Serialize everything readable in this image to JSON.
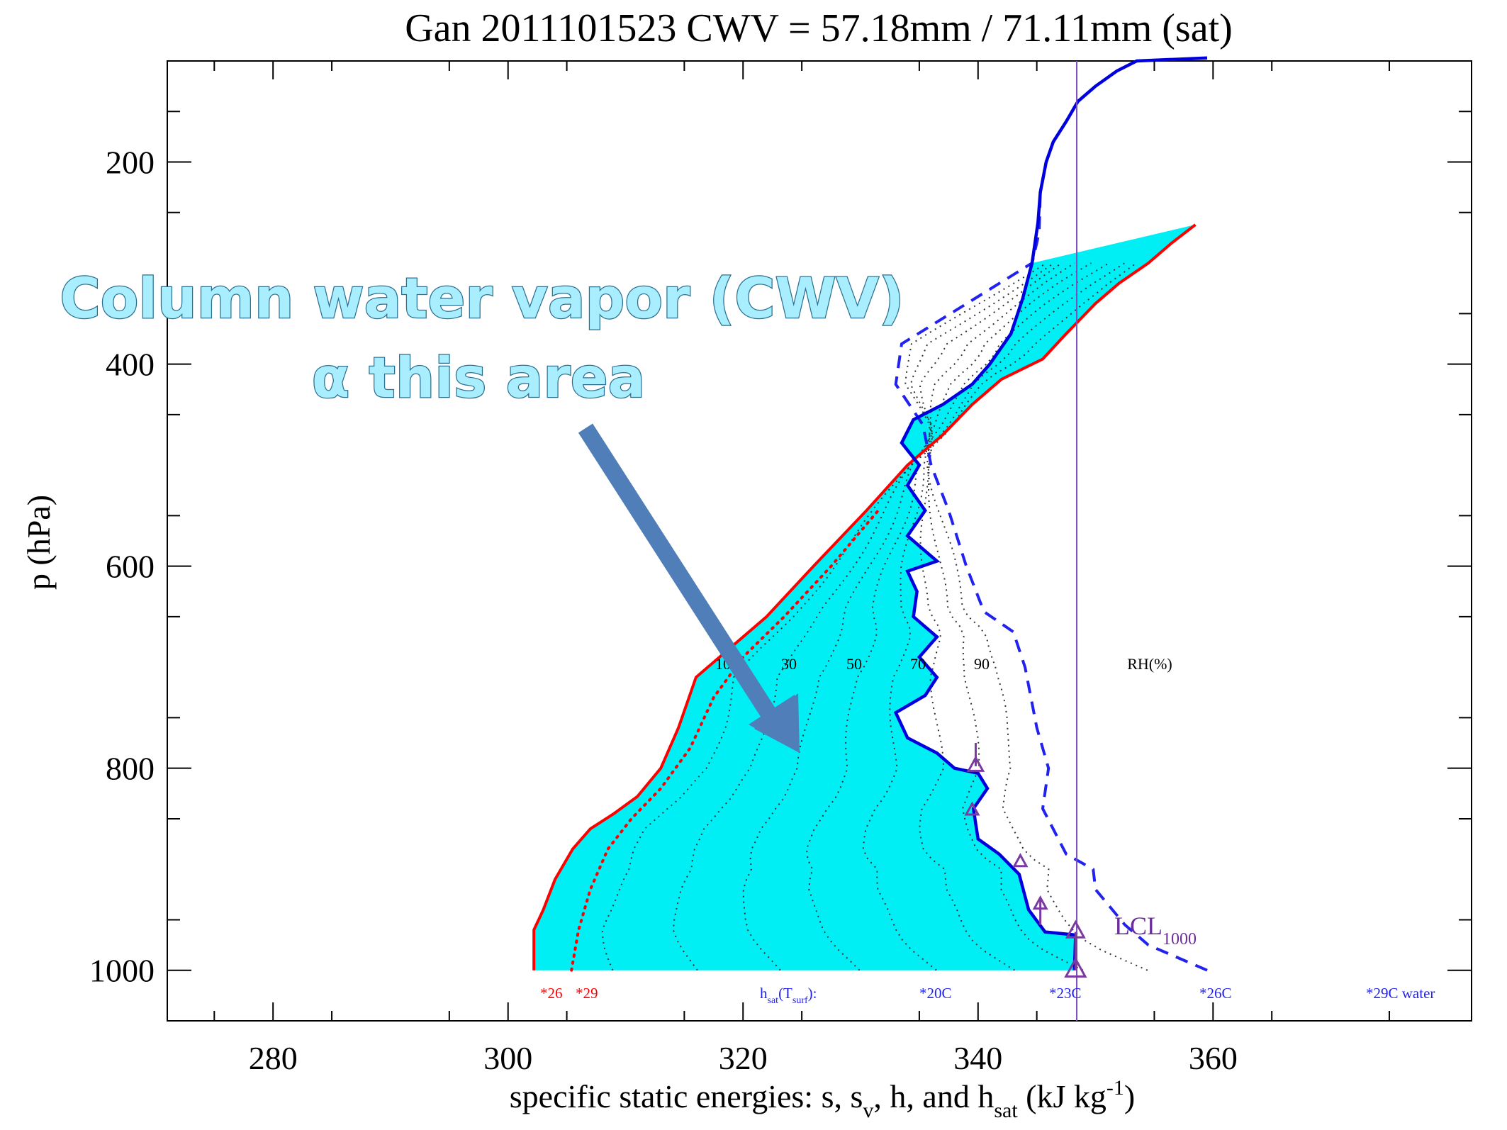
{
  "chart_data": {
    "type": "line",
    "title": "Gan 2011101523  CWV = 57.18mm / 71.11mm (sat)",
    "xlabel": "specific static energies: s, s",
    "xlabel_parts": {
      "sub_v": "v",
      "mid": ", h, and h",
      "sub_sat": "sat",
      "units": " (kJ  kg",
      "sup": "-1",
      "close": ")"
    },
    "ylabel": "p (hPa)",
    "xlim": [
      271,
      382
    ],
    "ylim": [
      1050,
      100
    ],
    "x_ticks": [
      280,
      300,
      320,
      340,
      360
    ],
    "y_ticks": [
      200,
      400,
      600,
      800,
      1000
    ],
    "x_tick_labels": [
      "280",
      "300",
      "320",
      "340",
      "360"
    ],
    "y_tick_labels": [
      "200",
      "400",
      "600",
      "800",
      "1000"
    ],
    "grid": false,
    "colors": {
      "s_line": "#ff0000",
      "s_v_line": "#ff0000",
      "h_line": "#0000dd",
      "h_sat_line": "#2222ee",
      "fill": "#00eff5",
      "rh_contours": "#333333",
      "lcl_vertical": "#7a4fc0",
      "markers": "#7a3aa0",
      "arrow": "#4f7eb8",
      "callout_text": "#a8eeff"
    },
    "series": [
      {
        "name": "s",
        "style": "solid",
        "points": [
          [
            302.2,
            1000
          ],
          [
            302.2,
            960
          ],
          [
            303,
            940
          ],
          [
            304,
            910
          ],
          [
            305.5,
            880
          ],
          [
            307,
            860
          ],
          [
            309,
            845
          ],
          [
            311,
            828
          ],
          [
            313,
            800
          ],
          [
            314.5,
            760
          ],
          [
            316,
            710
          ],
          [
            318.5,
            685
          ],
          [
            322,
            650
          ],
          [
            326,
            600
          ],
          [
            330.5,
            545
          ],
          [
            334,
            500
          ],
          [
            337,
            470
          ],
          [
            339.5,
            440
          ],
          [
            342,
            415
          ],
          [
            345.5,
            395
          ],
          [
            347.5,
            370
          ],
          [
            350,
            340
          ],
          [
            352,
            320
          ],
          [
            354.5,
            300
          ],
          [
            356.5,
            280
          ],
          [
            358.5,
            262
          ]
        ]
      },
      {
        "name": "s_v",
        "style": "dotted",
        "points": [
          [
            305.4,
            1000
          ],
          [
            306,
            960
          ],
          [
            307,
            920
          ],
          [
            308.5,
            880
          ],
          [
            310.5,
            850
          ],
          [
            313,
            820
          ],
          [
            315.5,
            780
          ],
          [
            317.5,
            730
          ],
          [
            320,
            690
          ],
          [
            323.5,
            650
          ],
          [
            327.5,
            600
          ],
          [
            331.5,
            545
          ]
        ]
      },
      {
        "name": "h",
        "style": "solid",
        "points": [
          [
            348.2,
            1000
          ],
          [
            348.3,
            965
          ],
          [
            345.7,
            962
          ],
          [
            344.3,
            940
          ],
          [
            343.5,
            905
          ],
          [
            341.8,
            885
          ],
          [
            340,
            870
          ],
          [
            339.6,
            840
          ],
          [
            340.8,
            820
          ],
          [
            340,
            805
          ],
          [
            338,
            800
          ],
          [
            336.5,
            785
          ],
          [
            334,
            770
          ],
          [
            333,
            745
          ],
          [
            335.5,
            728
          ],
          [
            336.5,
            710
          ],
          [
            335,
            690
          ],
          [
            336.5,
            670
          ],
          [
            334.5,
            650
          ],
          [
            334.8,
            625
          ],
          [
            334,
            605
          ],
          [
            336.5,
            595
          ],
          [
            334,
            570
          ],
          [
            335.5,
            545
          ],
          [
            334,
            520
          ],
          [
            335,
            500
          ],
          [
            333.5,
            478
          ],
          [
            334.5,
            455
          ],
          [
            337,
            440
          ],
          [
            339.5,
            420
          ],
          [
            341,
            400
          ],
          [
            342.8,
            370
          ],
          [
            343.8,
            335
          ],
          [
            344.6,
            300
          ],
          [
            345.1,
            260
          ],
          [
            345.3,
            230
          ],
          [
            345.8,
            200
          ],
          [
            346.4,
            180
          ],
          [
            347.5,
            160
          ],
          [
            348.5,
            140
          ],
          [
            350,
            125
          ],
          [
            351.8,
            110
          ],
          [
            353.5,
            100
          ],
          [
            359.5,
            97
          ]
        ]
      },
      {
        "name": "h_sat",
        "style": "dashed",
        "points": [
          [
            359.5,
            1000
          ],
          [
            354.5,
            975
          ],
          [
            352.5,
            955
          ],
          [
            350,
            920
          ],
          [
            349.8,
            900
          ],
          [
            347.5,
            885
          ],
          [
            345.5,
            840
          ],
          [
            346,
            800
          ],
          [
            345,
            760
          ],
          [
            344,
            700
          ],
          [
            343,
            665
          ],
          [
            340.5,
            645
          ],
          [
            339,
            600
          ],
          [
            337.5,
            545
          ],
          [
            336,
            500
          ],
          [
            335.3,
            460
          ],
          [
            333,
            420
          ],
          [
            333.5,
            380
          ],
          [
            344.6,
            300
          ],
          [
            345.2,
            270
          ],
          [
            345.3,
            230
          ]
        ]
      }
    ],
    "rh_contour_labels": [
      "10",
      "30",
      "50",
      "70",
      "90"
    ],
    "rh_axis_label": "RH(%)",
    "lcl_x": 348.4,
    "lcl_label": "LCL",
    "lcl_subscript": "1000",
    "footer_labels": [
      {
        "text": "*26",
        "color": "red"
      },
      {
        "text": "*29",
        "color": "red"
      },
      {
        "text": "h",
        "sub1": "sat",
        "mid": "(T",
        "sub2": "surf",
        "end": "):",
        "color": "blue"
      },
      {
        "text": "*20C",
        "color": "blue"
      },
      {
        "text": "*23C",
        "color": "blue"
      },
      {
        "text": "*26C",
        "color": "blue"
      },
      {
        "text": "*29C water",
        "color": "blue"
      }
    ],
    "annotations": {
      "line1": "Column water vapor (CWV)",
      "line2": "α  this area"
    }
  }
}
